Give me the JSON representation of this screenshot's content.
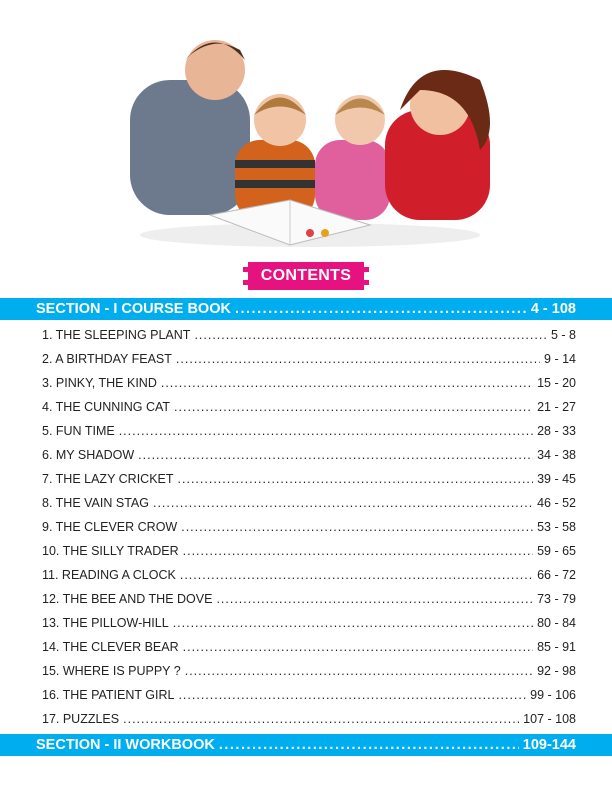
{
  "heading": "CONTENTS",
  "section1": {
    "title": "SECTION - I  COURSE BOOK",
    "pages": "4 - 108"
  },
  "entries": [
    {
      "title": "1. THE SLEEPING PLANT",
      "pages": "5 - 8"
    },
    {
      "title": "2.  A BIRTHDAY FEAST",
      "pages": "9 - 14"
    },
    {
      "title": "3.  PINKY, THE KIND",
      "pages": "15 - 20"
    },
    {
      "title": "4.  THE CUNNING CAT",
      "pages": "21 - 27"
    },
    {
      "title": "5.  FUN TIME",
      "pages": "28 - 33"
    },
    {
      "title": "6.  MY SHADOW",
      "pages": "34 - 38"
    },
    {
      "title": "7.  THE LAZY CRICKET",
      "pages": "39 - 45"
    },
    {
      "title": "8.  THE VAIN STAG",
      "pages": "46 - 52"
    },
    {
      "title": "9.  THE CLEVER CROW",
      "pages": "53 - 58"
    },
    {
      "title": "10. THE SILLY TRADER",
      "pages": "59 - 65"
    },
    {
      "title": "11. READING A CLOCK",
      "pages": "66 - 72"
    },
    {
      "title": "12. THE BEE AND THE DOVE",
      "pages": "73 - 79"
    },
    {
      "title": "13. THE PILLOW-HILL",
      "pages": "80 - 84"
    },
    {
      "title": "14. THE CLEVER BEAR",
      "pages": "85 - 91"
    },
    {
      "title": "15. WHERE IS PUPPY ?",
      "pages": "92 - 98"
    },
    {
      "title": "16. THE PATIENT GIRL",
      "pages": "99 - 106"
    },
    {
      "title": "17.  PUZZLES",
      "pages": "107 - 108"
    }
  ],
  "section2": {
    "title": "SECTION - II WORKBOOK",
    "pages": "109-144"
  },
  "colors": {
    "accent_blue": "#00aeef",
    "badge_pink": "#e6127f"
  }
}
